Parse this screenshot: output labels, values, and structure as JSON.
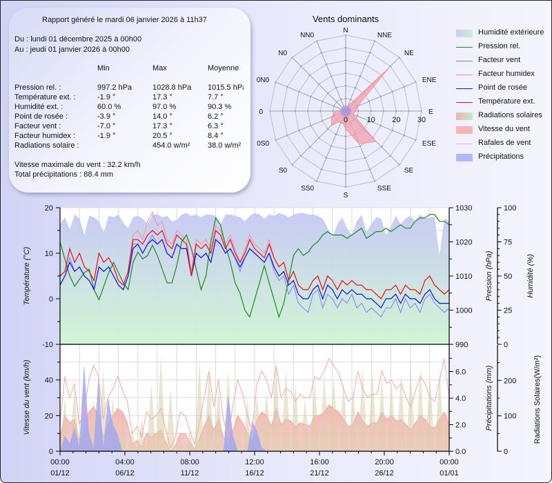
{
  "report": {
    "generated": "Rapport généré le mardi 06 janvier 2026 à 11h37",
    "from": "Du : lundi 01 décembre 2025 à 00h00",
    "to": "Au : jeudi 01 janvier 2026 à 00h00",
    "columns": [
      "Min",
      "Max",
      "Moyenne"
    ],
    "rows": [
      {
        "label": "Pression rel. :",
        "min": "997.2 hPa",
        "max": "1028.8 hPa",
        "avg": "1015.5 hPa"
      },
      {
        "label": "Température ext. :",
        "min": "-1.9 °",
        "max": "17.3 °",
        "avg": "7.7 °"
      },
      {
        "label": "Humidité ext. :",
        "min": "60.0 %",
        "max": "97.0 %",
        "avg": "90.3 %"
      },
      {
        "label": "Point de rosée :",
        "min": "-3.9 °",
        "max": "14.0 °",
        "avg": "6.2 °"
      },
      {
        "label": "Facteur vent :",
        "min": "-7.0 °",
        "max": "17.3 °",
        "avg": "6.3 °"
      },
      {
        "label": "Facteur humidex :",
        "min": "-1.9 °",
        "max": "20.5 °",
        "avg": "8.4 °"
      },
      {
        "label": "Radiations solaire :",
        "min": "",
        "max": "454.0 w/m²",
        "avg": "38.0 w/m²"
      }
    ],
    "max_wind": "Vitesse maximale du vent : 32.2 km/h",
    "total_rain": "Total précipitations : 88.4 mm"
  },
  "legend": [
    {
      "label": "Humidité extérieure",
      "kind": "area",
      "color": "#c9cdf3",
      "color2": "#cdeed4"
    },
    {
      "label": "Pression rel.",
      "kind": "line",
      "color": "#1a8a1a"
    },
    {
      "label": "Facteur vent",
      "kind": "line",
      "color": "#7c7cf0"
    },
    {
      "label": "Facteur humidex",
      "kind": "line",
      "color": "#f48a8a"
    },
    {
      "label": "Point de rosée",
      "kind": "line",
      "color": "#1010e0"
    },
    {
      "label": "Température ext.",
      "kind": "line",
      "color": "#e81010"
    },
    {
      "label": "Radiations solaires",
      "kind": "area",
      "color": "#e9b4b0",
      "color2": "#c8ecc8"
    },
    {
      "label": "Vitesse du vent",
      "kind": "area",
      "color": "#f6b4b4",
      "color2": "#f6b4b4"
    },
    {
      "label": "Rafales de vent",
      "kind": "line",
      "color": "#f8b4b4"
    },
    {
      "label": "Précipitations",
      "kind": "area",
      "color": "#b4b8f6",
      "color2": "#b4b8f6"
    }
  ],
  "chart_data": [
    {
      "type": "radar",
      "title": "Vents dominants",
      "directions": [
        "N",
        "NNE",
        "NE",
        "ENE",
        "E",
        "ESE",
        "SE",
        "SSE",
        "S",
        "SS0",
        "S0",
        "0S0",
        "0",
        "0N0",
        "N0",
        "NN0"
      ],
      "radial_ticks": [
        "0",
        "10",
        "20",
        "30"
      ],
      "rmax": 30,
      "series": [
        {
          "name": "Vitesse du vent (fréquence)",
          "values": [
            1,
            2,
            24,
            5,
            4,
            3,
            17,
            14,
            7,
            4,
            8,
            6,
            4,
            1,
            1,
            1
          ]
        }
      ]
    },
    {
      "type": "line",
      "title": "",
      "xlabel": "",
      "x_ticks": [
        {
          "time": "00:00",
          "date": "01/12"
        },
        {
          "time": "04:00",
          "date": "06/12"
        },
        {
          "time": "08:00",
          "date": "11/12"
        },
        {
          "time": "12:00",
          "date": "16/12"
        },
        {
          "time": "16:00",
          "date": "21/12"
        },
        {
          "time": "20:00",
          "date": "26/12"
        },
        {
          "time": "00:00",
          "date": "01/01"
        }
      ],
      "axes": {
        "temperature": {
          "label": "Température (°C)",
          "range": [
            -10,
            20
          ],
          "ticks": [
            "20",
            "10",
            "0",
            "-10"
          ]
        },
        "pressure": {
          "label": "Pression (hPa)",
          "range": [
            990,
            1030
          ],
          "ticks": [
            "1030",
            "1020",
            "1010",
            "1000",
            "990"
          ]
        },
        "humidity": {
          "label": "Humidité (%)",
          "range": [
            0,
            100
          ],
          "ticks": [
            "100",
            "75",
            "50",
            "25",
            "0"
          ]
        }
      },
      "series": [
        {
          "name": "Humidité extérieure",
          "axis": "humidity",
          "values": [
            88,
            93,
            84,
            95,
            92,
            80,
            94,
            93,
            90,
            82,
            94,
            93,
            95,
            89,
            85,
            93,
            94,
            92,
            88,
            95,
            95,
            93,
            94,
            90,
            91,
            95,
            96,
            94,
            95,
            93,
            95,
            95,
            94,
            88,
            95,
            95,
            94,
            93,
            90,
            94,
            96,
            95,
            92,
            95,
            94,
            96,
            95,
            93,
            95,
            96,
            96,
            95,
            95,
            94,
            92,
            85,
            78,
            88,
            93,
            85,
            80,
            90,
            95,
            82,
            88,
            93,
            92,
            80,
            86,
            94,
            88,
            92,
            94,
            90,
            95,
            92,
            93,
            93,
            65,
            92,
            90
          ]
        },
        {
          "name": "Pression rel.",
          "axis": "pressure",
          "values": [
            1020,
            1015,
            1010,
            1007,
            1009,
            1011,
            1012,
            1006,
            1003,
            1007,
            1011,
            1014,
            1011,
            1008,
            1006,
            1014,
            1017,
            1015,
            1016,
            1019,
            1016,
            1012,
            1008,
            1008,
            1013,
            1020,
            1022,
            1018,
            1012,
            1006,
            1010,
            1020,
            1027,
            1025,
            1019,
            1014,
            1008,
            1005,
            1000,
            998,
            1003,
            1008,
            1013,
            1008,
            1003,
            998,
            1002,
            1009,
            1016,
            1018,
            1016,
            1017,
            1019,
            1020,
            1022,
            1023,
            1022,
            1022,
            1022,
            1021,
            1022,
            1023,
            1024,
            1021,
            1022,
            1023,
            1023,
            1024,
            1023,
            1024,
            1025,
            1024,
            1024,
            1026,
            1027,
            1027,
            1028,
            1028,
            1026,
            1026,
            1025
          ]
        },
        {
          "name": "Température ext.",
          "axis": "temperature",
          "values": [
            5,
            6,
            11,
            8,
            10,
            7,
            6,
            4,
            10,
            8,
            9,
            7,
            4,
            3,
            6,
            13,
            13,
            12,
            14,
            15,
            14,
            15,
            12,
            11,
            14,
            13,
            12,
            5,
            12,
            11,
            12,
            10,
            15,
            14,
            11,
            13,
            10,
            8,
            10,
            13,
            11,
            10,
            9,
            12,
            9,
            7,
            8,
            4,
            6,
            3,
            2,
            2,
            4,
            5,
            2,
            5,
            4,
            2,
            4,
            3,
            4,
            3,
            3,
            2,
            2,
            1,
            0,
            2,
            2,
            3,
            1,
            3,
            2,
            2,
            1,
            4,
            5,
            3,
            2,
            1,
            2
          ]
        },
        {
          "name": "Point de rosée",
          "axis": "temperature",
          "values": [
            3,
            5,
            8,
            6,
            7,
            5,
            4,
            2,
            7,
            6,
            7,
            5,
            3,
            2,
            5,
            11,
            12,
            10,
            12,
            13,
            12,
            13,
            10,
            9,
            12,
            11,
            11,
            5,
            10,
            9,
            10,
            8,
            13,
            12,
            10,
            11,
            9,
            7,
            9,
            11,
            10,
            9,
            8,
            10,
            7,
            5,
            6,
            3,
            4,
            1,
            0,
            0,
            2,
            3,
            0,
            3,
            2,
            0,
            2,
            1,
            2,
            1,
            1,
            0,
            0,
            -1,
            -2,
            0,
            0,
            1,
            -1,
            1,
            0,
            0,
            -1,
            1,
            2,
            0,
            -1,
            -1,
            -1
          ]
        },
        {
          "name": "Facteur vent",
          "axis": "temperature",
          "values": [
            3,
            5,
            9,
            6,
            7,
            5,
            4,
            2,
            7,
            6,
            7,
            5,
            3,
            2,
            5,
            12,
            12,
            10,
            12,
            14,
            12,
            13,
            10,
            9,
            12,
            11,
            11,
            5,
            10,
            9,
            10,
            8,
            13,
            12,
            10,
            11,
            9,
            6,
            9,
            11,
            10,
            9,
            8,
            10,
            6,
            4,
            5,
            1,
            3,
            -1,
            -2,
            -3,
            1,
            2,
            -2,
            1,
            0,
            -2,
            0,
            -1,
            1,
            -2,
            -1,
            -3,
            -2,
            -3,
            -4,
            -2,
            -2,
            0,
            -3,
            0,
            -2,
            -1,
            -3,
            0,
            1,
            -1,
            -2,
            -3,
            -2
          ]
        },
        {
          "name": "Facteur humidex",
          "axis": "temperature",
          "values": [
            5,
            6,
            11,
            8,
            10,
            7,
            6,
            4,
            10,
            8,
            9,
            7,
            4,
            3,
            6,
            14,
            15,
            13,
            17,
            19,
            16,
            17,
            13,
            12,
            15,
            14,
            13,
            6,
            13,
            12,
            13,
            11,
            16,
            15,
            12,
            14,
            11,
            8,
            11,
            14,
            12,
            11,
            10,
            13,
            9,
            7,
            8,
            4,
            6,
            3,
            2,
            2,
            4,
            5,
            2,
            5,
            4,
            2,
            4,
            3,
            4,
            3,
            3,
            2,
            2,
            1,
            0,
            2,
            2,
            3,
            1,
            3,
            2,
            2,
            1,
            4,
            5,
            3,
            2,
            1,
            2
          ]
        }
      ]
    },
    {
      "type": "area",
      "axes": {
        "wind": {
          "label": "Vitesse du vent (km/h)",
          "range": [
            0,
            60
          ],
          "ticks": [
            "40",
            "20",
            "0"
          ]
        },
        "rain": {
          "label": "Précipitations (mm)",
          "range": [
            0,
            8
          ],
          "ticks": [
            "6.0",
            "4.0",
            "2.0",
            "0.0"
          ]
        },
        "solar": {
          "label": "Radiations Solaires(W/m²)",
          "range": [
            0,
            300
          ],
          "ticks": [
            "200",
            "100",
            "0"
          ]
        }
      },
      "series": [
        {
          "name": "Rafales de vent",
          "axis": "wind",
          "values": [
            16,
            42,
            30,
            38,
            15,
            22,
            40,
            48,
            42,
            18,
            30,
            35,
            42,
            34,
            28,
            10,
            14,
            8,
            22,
            18,
            20,
            24,
            12,
            2,
            8,
            22,
            20,
            12,
            4,
            16,
            30,
            45,
            25,
            40,
            18,
            8,
            26,
            40,
            32,
            20,
            12,
            38,
            45,
            40,
            30,
            48,
            30,
            35,
            34,
            28,
            32,
            30,
            30,
            42,
            40,
            45,
            52,
            48,
            44,
            35,
            28,
            30,
            45,
            35,
            30,
            32,
            32,
            45,
            38,
            40,
            35,
            38,
            30,
            25,
            34,
            42,
            38,
            30,
            28,
            40,
            52,
            30
          ]
        },
        {
          "name": "Vitesse du vent",
          "axis": "wind",
          "values": [
            8,
            20,
            16,
            18,
            6,
            10,
            22,
            25,
            20,
            8,
            15,
            20,
            24,
            22,
            16,
            4,
            6,
            2,
            10,
            8,
            10,
            12,
            5,
            0,
            3,
            10,
            10,
            5,
            1,
            7,
            14,
            20,
            12,
            18,
            8,
            3,
            12,
            20,
            16,
            10,
            5,
            18,
            22,
            20,
            14,
            24,
            15,
            18,
            17,
            14,
            16,
            15,
            14,
            20,
            20,
            22,
            26,
            24,
            22,
            18,
            14,
            15,
            22,
            17,
            14,
            16,
            16,
            22,
            18,
            20,
            17,
            18,
            15,
            12,
            16,
            20,
            18,
            14,
            13,
            18,
            22,
            15
          ]
        },
        {
          "name": "Précipitations",
          "axis": "rain",
          "values": [
            0,
            1.2,
            0.6,
            1.8,
            0.4,
            6.6,
            1.5,
            0.2,
            5.6,
            0.3,
            4.1,
            2.0,
            1.3,
            0,
            0,
            0,
            0,
            0,
            0,
            0,
            0,
            0,
            0,
            0,
            0,
            0,
            0,
            0,
            0,
            0,
            0,
            0,
            0,
            0,
            0,
            4.3,
            1.2,
            0,
            0,
            0,
            2.3,
            1.5,
            0.3,
            0,
            0,
            0,
            0,
            0,
            0,
            0,
            0,
            0,
            0,
            0,
            0,
            0,
            0,
            0,
            0,
            0,
            0,
            0,
            0,
            0,
            0,
            0,
            0,
            0,
            0,
            0,
            0,
            0,
            0,
            0,
            0,
            0,
            0,
            0,
            0,
            0,
            0,
            0
          ]
        },
        {
          "name": "Radiations solaires",
          "axis": "solar",
          "values": [
            0,
            150,
            0,
            180,
            0,
            200,
            0,
            150,
            0,
            230,
            0,
            150,
            0,
            110,
            0,
            60,
            0,
            90,
            0,
            190,
            0,
            270,
            0,
            180,
            0,
            40,
            0,
            60,
            0,
            260,
            0,
            240,
            0,
            180,
            0,
            230,
            0,
            100,
            0,
            150,
            0,
            160,
            0,
            170,
            0,
            250,
            0,
            230,
            0,
            190,
            0,
            150,
            0,
            200,
            0,
            220,
            0,
            210,
            0,
            200,
            0,
            180,
            0,
            240,
            0,
            230,
            0,
            210,
            0,
            200,
            0,
            220,
            0,
            230,
            0,
            240,
            0,
            220,
            0,
            230,
            0,
            200
          ]
        }
      ]
    }
  ]
}
